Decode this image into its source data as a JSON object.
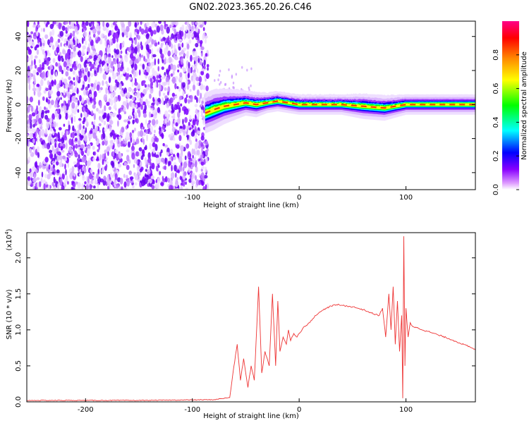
{
  "title": "GN02.2023.365.20.26.C46",
  "chart_data": [
    {
      "type": "heatmap",
      "panel": "spectrogram",
      "xlabel": "Height of straight line (km)",
      "ylabel": "Frequency (Hz)",
      "xlim": [
        -255,
        165
      ],
      "ylim": [
        -50,
        49
      ],
      "xticks": [
        -200,
        -100,
        0,
        100
      ],
      "xtick_labels": [
        "-200",
        "-100",
        "0",
        "100"
      ],
      "yticks": [
        -40,
        -20,
        0,
        20,
        40
      ],
      "ytick_labels": [
        "-40",
        "-20",
        "0",
        "20",
        "40"
      ],
      "noise_region_x": [
        -255,
        -88
      ],
      "signal_band": {
        "x": [
          -88,
          -80,
          -70,
          -60,
          -50,
          -40,
          -30,
          -20,
          -10,
          0,
          20,
          40,
          60,
          80,
          100,
          120,
          140,
          165
        ],
        "center_hz": [
          -5,
          -3,
          -1,
          0,
          1,
          0,
          1,
          2,
          1,
          0,
          0,
          0,
          -1,
          -2,
          0,
          0,
          0,
          0
        ],
        "halfwidth_hz": [
          4,
          4,
          3.5,
          3,
          2.5,
          2.5,
          2,
          2,
          2,
          2,
          2,
          2,
          2.5,
          2.5,
          2,
          2,
          2,
          2
        ]
      },
      "grid": false
    },
    {
      "type": "colorbar",
      "label": "Normalized spectral amplitude",
      "ticks": [
        0.0,
        0.2,
        0.4,
        0.6,
        0.8
      ],
      "tick_labels": [
        "0.0",
        "0.2",
        "0.4",
        "0.6",
        "0.8"
      ],
      "range": [
        0,
        1
      ],
      "colors": [
        "#ffffff",
        "#8800ff",
        "#0000ff",
        "#00ffff",
        "#00ff00",
        "#ffff00",
        "#ff8800",
        "#ff0000",
        "#ff00aa"
      ]
    },
    {
      "type": "line",
      "panel": "snr",
      "xlabel": "Height of straight line (km)",
      "ylabel": "SNR (10 * v/v)",
      "exponent_label": "(x10",
      "exponent_power": "4",
      "exponent_close": ")",
      "xlim": [
        -255,
        165
      ],
      "ylim": [
        0,
        2.35
      ],
      "xticks": [
        -200,
        -100,
        0,
        100
      ],
      "xtick_labels": [
        "-200",
        "-100",
        "0",
        "100"
      ],
      "yticks": [
        0.0,
        0.5,
        1.0,
        1.5,
        2.0
      ],
      "ytick_labels": [
        "0.0",
        "0.5",
        "1.0",
        "1.5",
        "2.0"
      ],
      "series": [
        {
          "color": "#ee3333",
          "x": [
            -255,
            -150,
            -80,
            -65,
            -62,
            -58,
            -55,
            -52,
            -48,
            -45,
            -42,
            -38,
            -35,
            -32,
            -28,
            -25,
            -22,
            -20,
            -18,
            -15,
            -12,
            -10,
            -8,
            -5,
            -2,
            0,
            5,
            10,
            15,
            20,
            25,
            30,
            35,
            40,
            45,
            50,
            55,
            60,
            65,
            70,
            75,
            78,
            81,
            84,
            86,
            88,
            90,
            92,
            94,
            96,
            97,
            98,
            99,
            100,
            102,
            104,
            106,
            110,
            120,
            130,
            140,
            150,
            160,
            165
          ],
          "y": [
            0.02,
            0.02,
            0.03,
            0.06,
            0.4,
            0.8,
            0.3,
            0.6,
            0.2,
            0.5,
            0.3,
            1.6,
            0.4,
            0.7,
            0.5,
            1.5,
            0.5,
            1.4,
            0.7,
            0.9,
            0.8,
            1.0,
            0.85,
            0.95,
            0.9,
            0.95,
            1.05,
            1.1,
            1.2,
            1.25,
            1.3,
            1.33,
            1.35,
            1.34,
            1.33,
            1.32,
            1.3,
            1.28,
            1.25,
            1.22,
            1.2,
            1.3,
            0.9,
            1.5,
            1.0,
            1.6,
            0.8,
            1.4,
            0.7,
            1.2,
            0.05,
            2.3,
            0.5,
            1.3,
            0.9,
            1.1,
            1.05,
            1.03,
            0.98,
            0.93,
            0.88,
            0.82,
            0.76,
            0.72
          ]
        }
      ],
      "grid": false
    }
  ]
}
